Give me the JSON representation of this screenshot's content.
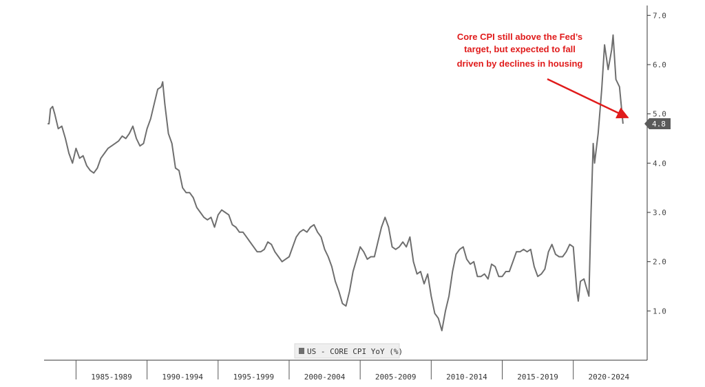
{
  "chart_data": {
    "type": "line",
    "title": "",
    "xlabel": "",
    "ylabel": "",
    "ylim": [
      0.0,
      7.2
    ],
    "xlim": [
      1982.75,
      2025.2
    ],
    "y_ticks": [
      "1.0",
      "2.0",
      "3.0",
      "4.0",
      "5.0",
      "6.0",
      "7.0"
    ],
    "x_categories": [
      "1985-1989",
      "1990-1994",
      "1995-1999",
      "2000-2004",
      "2005-2009",
      "2010-2014",
      "2015-2019",
      "2020-2024"
    ],
    "grid": false,
    "legend_position": "bottom-center",
    "series": [
      {
        "name": "US - CORE CPI YoY (%)",
        "color": "#6e6e6e",
        "points": [
          [
            1983.0,
            4.8
          ],
          [
            1983.1,
            4.8
          ],
          [
            1983.2,
            5.1
          ],
          [
            1983.35,
            5.15
          ],
          [
            1983.5,
            5.0
          ],
          [
            1983.75,
            4.7
          ],
          [
            1984.0,
            4.75
          ],
          [
            1984.25,
            4.5
          ],
          [
            1984.5,
            4.2
          ],
          [
            1984.75,
            4.0
          ],
          [
            1985.0,
            4.3
          ],
          [
            1985.25,
            4.1
          ],
          [
            1985.5,
            4.15
          ],
          [
            1985.75,
            3.95
          ],
          [
            1986.0,
            3.85
          ],
          [
            1986.25,
            3.8
          ],
          [
            1986.5,
            3.9
          ],
          [
            1986.75,
            4.1
          ],
          [
            1987.0,
            4.2
          ],
          [
            1987.25,
            4.3
          ],
          [
            1987.5,
            4.35
          ],
          [
            1987.75,
            4.4
          ],
          [
            1988.0,
            4.45
          ],
          [
            1988.25,
            4.55
          ],
          [
            1988.5,
            4.5
          ],
          [
            1988.75,
            4.6
          ],
          [
            1989.0,
            4.75
          ],
          [
            1989.25,
            4.5
          ],
          [
            1989.5,
            4.35
          ],
          [
            1989.75,
            4.4
          ],
          [
            1990.0,
            4.7
          ],
          [
            1990.25,
            4.9
          ],
          [
            1990.5,
            5.2
          ],
          [
            1990.75,
            5.5
          ],
          [
            1991.0,
            5.55
          ],
          [
            1991.1,
            5.65
          ],
          [
            1991.25,
            5.2
          ],
          [
            1991.5,
            4.6
          ],
          [
            1991.75,
            4.4
          ],
          [
            1992.0,
            3.9
          ],
          [
            1992.25,
            3.85
          ],
          [
            1992.5,
            3.5
          ],
          [
            1992.75,
            3.4
          ],
          [
            1993.0,
            3.4
          ],
          [
            1993.25,
            3.3
          ],
          [
            1993.5,
            3.1
          ],
          [
            1993.75,
            3.0
          ],
          [
            1994.0,
            2.9
          ],
          [
            1994.25,
            2.85
          ],
          [
            1994.5,
            2.9
          ],
          [
            1994.75,
            2.7
          ],
          [
            1995.0,
            2.95
          ],
          [
            1995.25,
            3.05
          ],
          [
            1995.5,
            3.0
          ],
          [
            1995.75,
            2.95
          ],
          [
            1996.0,
            2.75
          ],
          [
            1996.25,
            2.7
          ],
          [
            1996.5,
            2.6
          ],
          [
            1996.75,
            2.6
          ],
          [
            1997.0,
            2.5
          ],
          [
            1997.25,
            2.4
          ],
          [
            1997.5,
            2.3
          ],
          [
            1997.75,
            2.2
          ],
          [
            1998.0,
            2.2
          ],
          [
            1998.25,
            2.25
          ],
          [
            1998.5,
            2.4
          ],
          [
            1998.75,
            2.35
          ],
          [
            1999.0,
            2.2
          ],
          [
            1999.25,
            2.1
          ],
          [
            1999.5,
            2.0
          ],
          [
            1999.75,
            2.05
          ],
          [
            2000.0,
            2.1
          ],
          [
            2000.25,
            2.3
          ],
          [
            2000.5,
            2.5
          ],
          [
            2000.75,
            2.6
          ],
          [
            2001.0,
            2.65
          ],
          [
            2001.25,
            2.6
          ],
          [
            2001.5,
            2.7
          ],
          [
            2001.75,
            2.75
          ],
          [
            2002.0,
            2.6
          ],
          [
            2002.25,
            2.5
          ],
          [
            2002.5,
            2.25
          ],
          [
            2002.75,
            2.1
          ],
          [
            2003.0,
            1.9
          ],
          [
            2003.25,
            1.6
          ],
          [
            2003.5,
            1.4
          ],
          [
            2003.75,
            1.15
          ],
          [
            2004.0,
            1.1
          ],
          [
            2004.25,
            1.4
          ],
          [
            2004.5,
            1.8
          ],
          [
            2004.75,
            2.05
          ],
          [
            2005.0,
            2.3
          ],
          [
            2005.25,
            2.2
          ],
          [
            2005.5,
            2.05
          ],
          [
            2005.75,
            2.1
          ],
          [
            2006.0,
            2.1
          ],
          [
            2006.25,
            2.4
          ],
          [
            2006.5,
            2.7
          ],
          [
            2006.75,
            2.9
          ],
          [
            2007.0,
            2.7
          ],
          [
            2007.25,
            2.3
          ],
          [
            2007.5,
            2.25
          ],
          [
            2007.75,
            2.3
          ],
          [
            2008.0,
            2.4
          ],
          [
            2008.25,
            2.3
          ],
          [
            2008.5,
            2.5
          ],
          [
            2008.75,
            2.0
          ],
          [
            2009.0,
            1.75
          ],
          [
            2009.25,
            1.8
          ],
          [
            2009.5,
            1.55
          ],
          [
            2009.75,
            1.75
          ],
          [
            2010.0,
            1.3
          ],
          [
            2010.25,
            0.95
          ],
          [
            2010.5,
            0.85
          ],
          [
            2010.75,
            0.6
          ],
          [
            2011.0,
            1.0
          ],
          [
            2011.25,
            1.3
          ],
          [
            2011.5,
            1.8
          ],
          [
            2011.75,
            2.15
          ],
          [
            2012.0,
            2.25
          ],
          [
            2012.25,
            2.3
          ],
          [
            2012.5,
            2.05
          ],
          [
            2012.75,
            1.95
          ],
          [
            2013.0,
            2.0
          ],
          [
            2013.25,
            1.7
          ],
          [
            2013.5,
            1.7
          ],
          [
            2013.75,
            1.75
          ],
          [
            2014.0,
            1.65
          ],
          [
            2014.25,
            1.95
          ],
          [
            2014.5,
            1.9
          ],
          [
            2014.75,
            1.7
          ],
          [
            2015.0,
            1.7
          ],
          [
            2015.25,
            1.8
          ],
          [
            2015.5,
            1.8
          ],
          [
            2015.75,
            2.0
          ],
          [
            2016.0,
            2.2
          ],
          [
            2016.25,
            2.2
          ],
          [
            2016.5,
            2.25
          ],
          [
            2016.75,
            2.2
          ],
          [
            2017.0,
            2.25
          ],
          [
            2017.25,
            1.9
          ],
          [
            2017.5,
            1.7
          ],
          [
            2017.75,
            1.75
          ],
          [
            2018.0,
            1.85
          ],
          [
            2018.25,
            2.2
          ],
          [
            2018.5,
            2.35
          ],
          [
            2018.75,
            2.15
          ],
          [
            2019.0,
            2.1
          ],
          [
            2019.25,
            2.1
          ],
          [
            2019.5,
            2.2
          ],
          [
            2019.75,
            2.35
          ],
          [
            2020.0,
            2.3
          ],
          [
            2020.25,
            1.4
          ],
          [
            2020.35,
            1.2
          ],
          [
            2020.5,
            1.6
          ],
          [
            2020.75,
            1.65
          ],
          [
            2021.0,
            1.4
          ],
          [
            2021.1,
            1.3
          ],
          [
            2021.25,
            3.0
          ],
          [
            2021.4,
            4.4
          ],
          [
            2021.5,
            4.0
          ],
          [
            2021.75,
            4.6
          ],
          [
            2022.0,
            5.5
          ],
          [
            2022.2,
            6.4
          ],
          [
            2022.45,
            5.9
          ],
          [
            2022.7,
            6.3
          ],
          [
            2022.8,
            6.6
          ],
          [
            2023.0,
            5.7
          ],
          [
            2023.25,
            5.55
          ],
          [
            2023.5,
            4.8
          ]
        ]
      }
    ],
    "last_value_label": "4.8",
    "annotation": {
      "lines": [
        "Core CPI still above the Fed’s",
        "target, but expected to fall",
        "driven by declines in housing"
      ],
      "color": "#e01b1b"
    }
  }
}
